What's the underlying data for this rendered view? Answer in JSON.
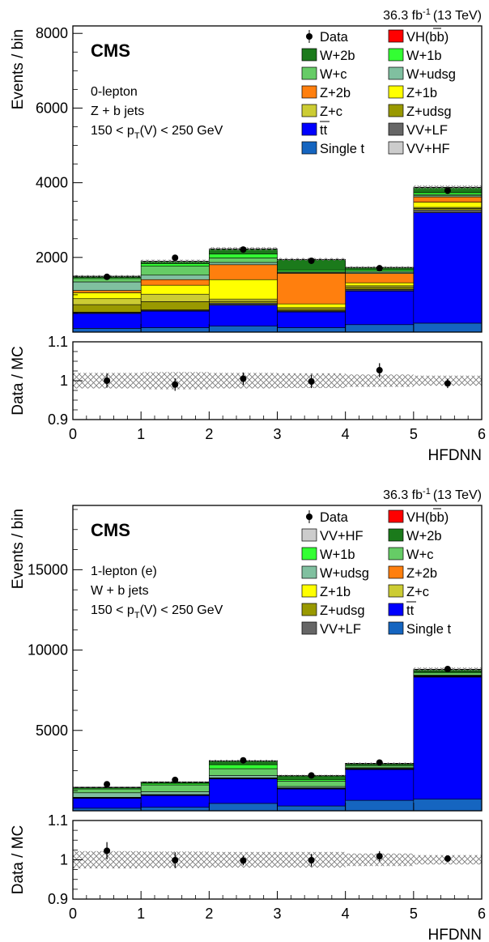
{
  "chart_data": [
    {
      "type": "stacked-bar",
      "lumi_text": "36.3 fb",
      "lumi_exp": "-1",
      "lumi_energy": "(13 TeV)",
      "cms_label": "CMS",
      "annotations": [
        "0-lepton",
        "Z + b jets",
        "150 < p",
        "T",
        "(V) < 250 GeV"
      ],
      "ylabel": "Events / bin",
      "ylim": [
        0,
        8200
      ],
      "yticks": [
        2000,
        4000,
        6000,
        8000
      ],
      "bin_edges": [
        0,
        1,
        2,
        3,
        4,
        5,
        6
      ],
      "legend_order": [
        "Data",
        "VH(bb)",
        "W+2b",
        "W+1b",
        "W+c",
        "W+udsg",
        "Z+2b",
        "Z+1b",
        "Z+c",
        "Z+udsg",
        "tt",
        "VV+LF",
        "Single t",
        "VV+HF"
      ],
      "stack_order": [
        "Single t",
        "tt",
        "VV+LF",
        "VV+HF",
        "Z+udsg",
        "Z+c",
        "Z+1b",
        "Z+2b",
        "W+udsg",
        "W+c",
        "W+1b",
        "W+2b",
        "VH(bb)"
      ],
      "series": [
        {
          "name": "Single t",
          "color": "#1565c0",
          "values": [
            100,
            120,
            160,
            120,
            200,
            240
          ]
        },
        {
          "name": "tt",
          "color": "#0000ff",
          "values": [
            400,
            440,
            560,
            420,
            900,
            2960
          ]
        },
        {
          "name": "VV+LF",
          "color": "#666666",
          "values": [
            20,
            20,
            30,
            20,
            30,
            40
          ]
        },
        {
          "name": "VV+HF",
          "color": "#cccccc",
          "values": [
            15,
            15,
            25,
            15,
            20,
            30
          ]
        },
        {
          "name": "Z+udsg",
          "color": "#999900",
          "values": [
            200,
            220,
            50,
            40,
            50,
            40
          ]
        },
        {
          "name": "Z+c",
          "color": "#cccc33",
          "values": [
            160,
            200,
            60,
            40,
            40,
            30
          ]
        },
        {
          "name": "Z+1b",
          "color": "#ffff00",
          "values": [
            160,
            240,
            520,
            100,
            80,
            140
          ]
        },
        {
          "name": "Z+2b",
          "color": "#ff7f0e",
          "values": [
            60,
            150,
            400,
            820,
            250,
            140
          ]
        },
        {
          "name": "W+udsg",
          "color": "#80c0a0",
          "values": [
            230,
            120,
            60,
            20,
            30,
            30
          ]
        },
        {
          "name": "W+c",
          "color": "#66cc66",
          "values": [
            90,
            240,
            120,
            30,
            40,
            40
          ]
        },
        {
          "name": "W+1b",
          "color": "#33ff33",
          "values": [
            30,
            70,
            110,
            40,
            40,
            50
          ]
        },
        {
          "name": "W+2b",
          "color": "#1b7a1b",
          "values": [
            30,
            60,
            130,
            280,
            50,
            130
          ]
        },
        {
          "name": "VH(bb)",
          "color": "#ff0000",
          "values": [
            2,
            3,
            5,
            3,
            5,
            10
          ]
        }
      ],
      "data_points": [
        1480,
        1990,
        2210,
        1910,
        1710,
        3790
      ],
      "ratio": {
        "ylabel": "Data / MC",
        "ylim": [
          0.9,
          1.1
        ],
        "yticks": [
          0.9,
          1,
          1.1
        ],
        "values": [
          1.0,
          0.99,
          1.005,
          0.998,
          1.027,
          0.993
        ],
        "errors": [
          0.018,
          0.016,
          0.016,
          0.017,
          0.018,
          0.012
        ],
        "band_halfwidth": [
          0.02,
          0.022,
          0.02,
          0.019,
          0.016,
          0.013
        ]
      },
      "xlabel": "HFDNN",
      "xticks": [
        0,
        1,
        2,
        3,
        4,
        5,
        6
      ]
    },
    {
      "type": "stacked-bar",
      "lumi_text": "36.3 fb",
      "lumi_exp": "-1",
      "lumi_energy": "(13 TeV)",
      "cms_label": "CMS",
      "annotations": [
        "1-lepton (e)",
        "W + b jets",
        "150 < p",
        "T",
        "(V) < 250 GeV"
      ],
      "ylabel": "Events / bin",
      "ylim": [
        0,
        19000
      ],
      "yticks": [
        5000,
        10000,
        15000
      ],
      "bin_edges": [
        0,
        1,
        2,
        3,
        4,
        5,
        6
      ],
      "legend_order": [
        "Data",
        "VH(bb)",
        "VV+HF",
        "W+2b",
        "W+1b",
        "W+c",
        "W+udsg",
        "Z+2b",
        "Z+1b",
        "Z+c",
        "Z+udsg",
        "tt",
        "VV+LF",
        "Single t"
      ],
      "stack_order": [
        "Single t",
        "tt",
        "VV+LF",
        "Z+udsg",
        "Z+c",
        "Z+1b",
        "Z+2b",
        "W+udsg",
        "W+c",
        "W+1b",
        "W+2b",
        "VV+HF",
        "VH(bb)"
      ],
      "series": [
        {
          "name": "Single t",
          "color": "#1565c0",
          "values": [
            160,
            220,
            460,
            300,
            650,
            720
          ]
        },
        {
          "name": "tt",
          "color": "#0000ff",
          "values": [
            620,
            730,
            1520,
            1060,
            1920,
            7600
          ]
        },
        {
          "name": "VV+LF",
          "color": "#666666",
          "values": [
            20,
            20,
            30,
            20,
            30,
            40
          ]
        },
        {
          "name": "Z+udsg",
          "color": "#999900",
          "values": [
            10,
            10,
            10,
            10,
            10,
            10
          ]
        },
        {
          "name": "Z+c",
          "color": "#cccc33",
          "values": [
            10,
            10,
            10,
            10,
            10,
            10
          ]
        },
        {
          "name": "Z+1b",
          "color": "#ffff00",
          "values": [
            10,
            10,
            10,
            10,
            10,
            10
          ]
        },
        {
          "name": "Z+2b",
          "color": "#ff7f0e",
          "values": [
            10,
            10,
            10,
            10,
            10,
            10
          ]
        },
        {
          "name": "W+udsg",
          "color": "#80c0a0",
          "values": [
            280,
            180,
            150,
            90,
            40,
            40
          ]
        },
        {
          "name": "W+c",
          "color": "#66cc66",
          "values": [
            240,
            420,
            420,
            340,
            130,
            140
          ]
        },
        {
          "name": "W+1b",
          "color": "#33ff33",
          "values": [
            60,
            100,
            250,
            100,
            60,
            60
          ]
        },
        {
          "name": "W+2b",
          "color": "#1b7a1b",
          "values": [
            40,
            70,
            220,
            230,
            70,
            150
          ]
        },
        {
          "name": "VV+HF",
          "color": "#cccccc",
          "values": [
            10,
            10,
            15,
            10,
            10,
            10
          ]
        },
        {
          "name": "VH(bb)",
          "color": "#ff0000",
          "values": [
            3,
            4,
            8,
            5,
            5,
            10
          ]
        }
      ],
      "data_points": [
        1650,
        1920,
        3140,
        2200,
        3000,
        8820
      ],
      "ratio": {
        "ylabel": "Data / MC",
        "ylim": [
          0.9,
          1.1
        ],
        "yticks": [
          0.9,
          1,
          1.1
        ],
        "values": [
          1.023,
          0.999,
          0.998,
          0.999,
          1.009,
          1.003
        ],
        "errors": [
          0.022,
          0.02,
          0.012,
          0.016,
          0.013,
          0.006
        ],
        "band_halfwidth": [
          0.022,
          0.021,
          0.02,
          0.02,
          0.016,
          0.012
        ]
      },
      "xlabel": "HFDNN",
      "xticks": [
        0,
        1,
        2,
        3,
        4,
        5,
        6
      ]
    }
  ]
}
